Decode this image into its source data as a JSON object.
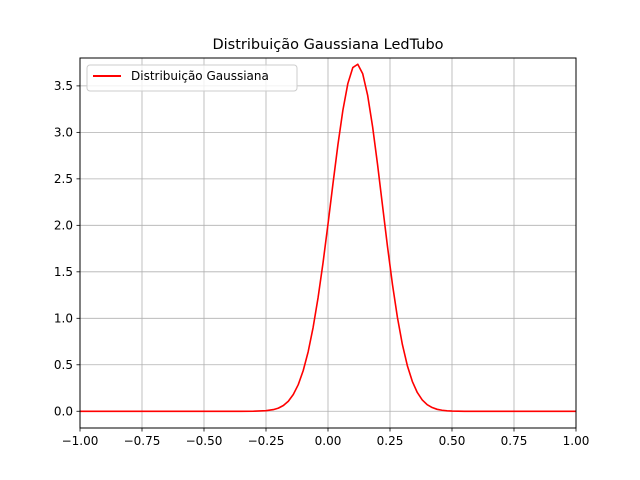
{
  "chart_data": {
    "type": "line",
    "title": "Distribuição Gaussiana LedTubo",
    "xlabel": "",
    "ylabel": "",
    "xlim": [
      -1.0,
      1.0
    ],
    "ylim": [
      -0.18,
      3.8
    ],
    "grid": true,
    "legend_position": "top-left",
    "x_ticks": [
      -1.0,
      -0.75,
      -0.5,
      -0.25,
      0.0,
      0.25,
      0.5,
      0.75,
      1.0
    ],
    "x_tick_labels": [
      "−1.00",
      "−0.75",
      "−0.50",
      "−0.25",
      "0.00",
      "0.25",
      "0.50",
      "0.75",
      "1.00"
    ],
    "y_ticks": [
      0.0,
      0.5,
      1.0,
      1.5,
      2.0,
      2.5,
      3.0,
      3.5
    ],
    "y_tick_labels": [
      "0.0",
      "0.5",
      "1.0",
      "1.5",
      "2.0",
      "2.5",
      "3.0",
      "3.5"
    ],
    "series": [
      {
        "name": "Distribuição Gaussiana",
        "color": "#ff0000",
        "x": [
          -1.0,
          -0.95,
          -0.9,
          -0.85,
          -0.8,
          -0.75,
          -0.7,
          -0.65,
          -0.6,
          -0.55,
          -0.5,
          -0.45,
          -0.4,
          -0.35,
          -0.3,
          -0.25,
          -0.22,
          -0.2,
          -0.18,
          -0.16,
          -0.14,
          -0.12,
          -0.1,
          -0.08,
          -0.06,
          -0.04,
          -0.02,
          0.0,
          0.02,
          0.04,
          0.06,
          0.08,
          0.1,
          0.12,
          0.14,
          0.16,
          0.18,
          0.2,
          0.22,
          0.24,
          0.26,
          0.28,
          0.3,
          0.32,
          0.34,
          0.36,
          0.38,
          0.4,
          0.42,
          0.44,
          0.46,
          0.48,
          0.5,
          0.55,
          0.6,
          0.65,
          0.7,
          0.75,
          0.8,
          0.85,
          0.9,
          0.95,
          1.0
        ],
        "y": [
          0.0,
          0.0,
          0.0,
          0.0,
          0.0,
          0.0,
          0.0,
          0.0,
          0.0,
          0.0,
          0.0,
          0.0,
          0.0,
          0.0,
          0.001,
          0.006,
          0.018,
          0.034,
          0.062,
          0.108,
          0.18,
          0.286,
          0.437,
          0.64,
          0.902,
          1.223,
          1.598,
          2.014,
          2.447,
          2.867,
          3.238,
          3.525,
          3.697,
          3.733,
          3.63,
          3.397,
          3.058,
          2.65,
          2.209,
          1.77,
          1.363,
          1.009,
          0.717,
          0.49,
          0.321,
          0.202,
          0.122,
          0.071,
          0.04,
          0.021,
          0.011,
          0.005,
          0.002,
          0.0,
          0.0,
          0.0,
          0.0,
          0.0,
          0.0,
          0.0,
          0.0,
          0.0,
          0.0
        ]
      }
    ]
  }
}
